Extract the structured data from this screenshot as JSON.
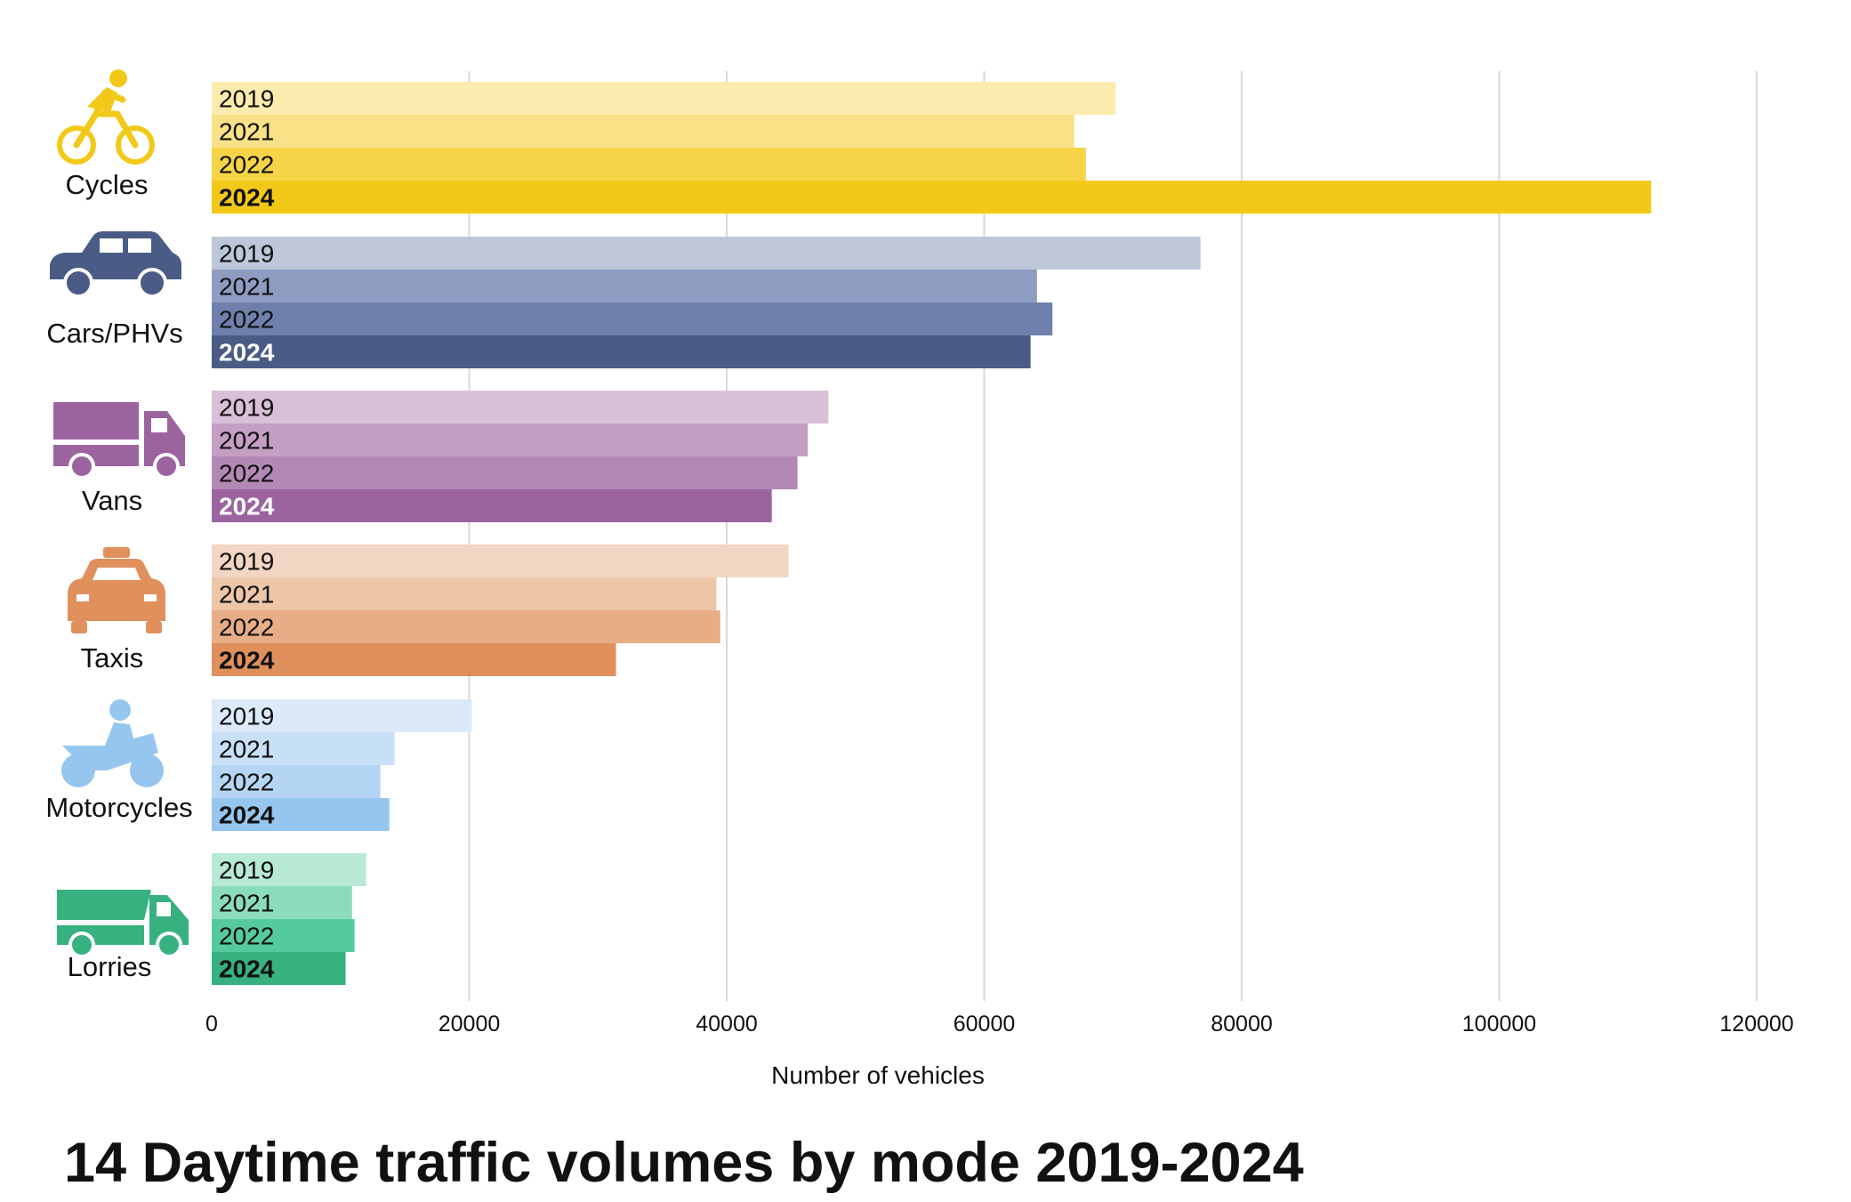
{
  "chart_data": {
    "type": "bar",
    "orientation": "horizontal",
    "title": "14 Daytime traffic volumes by mode 2019-2024",
    "xlabel": "Number of vehicles",
    "ylabel": "",
    "xlim": [
      0,
      120000
    ],
    "x_ticks": [
      0,
      20000,
      40000,
      60000,
      80000,
      100000,
      120000
    ],
    "grid": true,
    "years": [
      "2019",
      "2021",
      "2022",
      "2024"
    ],
    "highlight_year": "2024",
    "groups": [
      {
        "name": "Cycles",
        "icon": "bicycle-icon",
        "values": [
          70200,
          67000,
          67900,
          111800
        ],
        "colors": [
          "#fcebae",
          "#f8e186",
          "#f6d447",
          "#f2c919"
        ],
        "label_colors": [
          "#111111",
          "#111111",
          "#111111",
          "#111111"
        ]
      },
      {
        "name": "Cars/PHVs",
        "icon": "car-icon",
        "values": [
          76800,
          64100,
          65300,
          63600
        ],
        "colors": [
          "#bec6da",
          "#8f9cc2",
          "#6f80ad",
          "#4a5b85"
        ],
        "label_colors": [
          "#111111",
          "#111111",
          "#111111",
          "#ffffff"
        ]
      },
      {
        "name": "Vans",
        "icon": "van-icon",
        "values": [
          47900,
          46300,
          45500,
          43500
        ],
        "colors": [
          "#d8c0d8",
          "#c59ec4",
          "#b289b5",
          "#9b649f"
        ],
        "label_colors": [
          "#111111",
          "#111111",
          "#111111",
          "#ffffff"
        ]
      },
      {
        "name": "Taxis",
        "icon": "taxi-icon",
        "values": [
          44800,
          39200,
          39500,
          31400
        ],
        "colors": [
          "#f3d5c3",
          "#edc6a8",
          "#e7ad87",
          "#df905d"
        ],
        "label_colors": [
          "#111111",
          "#111111",
          "#111111",
          "#111111"
        ]
      },
      {
        "name": "Motorcycles",
        "icon": "motorcycle-icon",
        "values": [
          20200,
          14200,
          13100,
          13800
        ],
        "colors": [
          "#dbe9f8",
          "#c8e0f7",
          "#b4d6f4",
          "#96c6ee"
        ],
        "label_colors": [
          "#111111",
          "#111111",
          "#111111",
          "#111111"
        ]
      },
      {
        "name": "Lorries",
        "icon": "lorry-icon",
        "values": [
          12000,
          10900,
          11100,
          10400
        ],
        "colors": [
          "#b7e9d5",
          "#8bdcbb",
          "#55ca9d",
          "#37b17f"
        ],
        "label_colors": [
          "#111111",
          "#111111",
          "#111111",
          "#111111"
        ]
      }
    ]
  }
}
